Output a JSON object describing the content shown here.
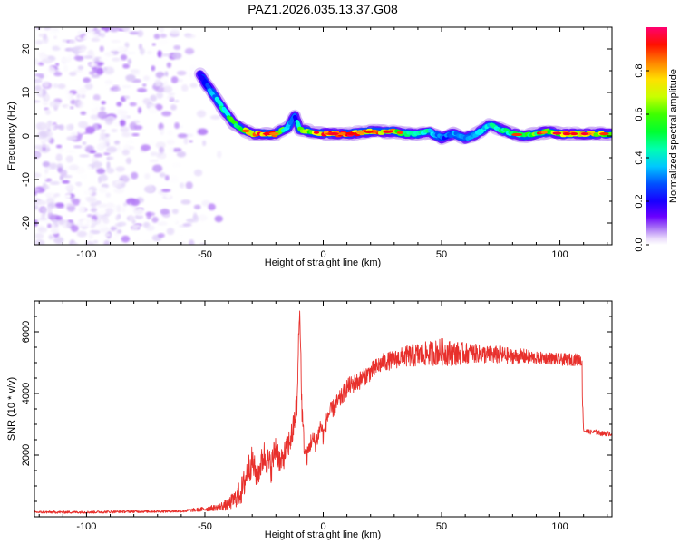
{
  "title": "PAZ1.2026.035.13.37.G08",
  "colors": {
    "snr_line": "#e8302c",
    "axes": "#000000",
    "noise_purple": "#7d1fe6",
    "colormap": [
      "#ffffff",
      "#d9c7f7",
      "#9b4cf5",
      "#5a00ff",
      "#0000ff",
      "#0090ff",
      "#00ffff",
      "#00ff80",
      "#00ff00",
      "#a0ff00",
      "#ffff00",
      "#ffa000",
      "#ff0000",
      "#ff0060"
    ]
  },
  "chart_data": [
    {
      "type": "heatmap",
      "xlabel": "Height of straight line (km)",
      "ylabel": "Frequency (Hz)",
      "xlim": [
        -122,
        122
      ],
      "ylim": [
        -25,
        25
      ],
      "xticks": [
        -100,
        -50,
        0,
        50,
        100
      ],
      "yticks": [
        -20,
        -10,
        0,
        10,
        20
      ],
      "xtick_labels": [
        "-100",
        "-50",
        "0",
        "50",
        "100"
      ],
      "ytick_labels": [
        "-20",
        "-10",
        "0",
        "10",
        "20"
      ],
      "colorbar": {
        "label": "Normalized spectral amplitude",
        "range": [
          0.0,
          1.0
        ],
        "ticks": [
          0.0,
          0.2,
          0.4,
          0.6,
          0.8
        ],
        "tick_labels": [
          "0.0",
          "0.2",
          "0.4",
          "0.6",
          "0.8"
        ]
      },
      "noise_region_x": [
        -122,
        -42
      ],
      "ridge": {
        "x": [
          -52,
          -47,
          -42,
          -38,
          -34,
          -30,
          -25,
          -20,
          -15,
          -12,
          -10,
          -5,
          0,
          10,
          20,
          30,
          35,
          40,
          45,
          50,
          55,
          60,
          65,
          70,
          75,
          80,
          85,
          90,
          95,
          100,
          105,
          110,
          115,
          122
        ],
        "freq": [
          14,
          10,
          6,
          3,
          1.5,
          0.5,
          0.5,
          0.5,
          2,
          4.5,
          1.5,
          1,
          0.5,
          0.5,
          1,
          1,
          0.5,
          0.5,
          1,
          -0.5,
          0.5,
          -0.5,
          0.5,
          2.5,
          1.5,
          0.5,
          0,
          0.5,
          1,
          0.5,
          0.5,
          0.5,
          0.5,
          0.5
        ],
        "amplitude": [
          0.3,
          0.4,
          0.55,
          0.65,
          0.7,
          0.85,
          0.95,
          0.8,
          0.5,
          0.3,
          0.6,
          0.7,
          0.9,
          0.95,
          0.85,
          0.8,
          0.6,
          0.55,
          0.5,
          0.35,
          0.4,
          0.35,
          0.45,
          0.5,
          0.55,
          0.6,
          0.6,
          0.65,
          0.7,
          0.75,
          0.85,
          0.8,
          0.75,
          0.7
        ]
      }
    },
    {
      "type": "line",
      "xlabel": "Height of straight line (km)",
      "ylabel": "SNR (10 * v/v)",
      "xlim": [
        -122,
        122
      ],
      "ylim": [
        0,
        7000
      ],
      "xticks": [
        -100,
        -50,
        0,
        50,
        100
      ],
      "yticks": [
        2000,
        4000,
        6000
      ],
      "xtick_labels": [
        "-100",
        "-50",
        "0",
        "50",
        "100"
      ],
      "ytick_labels": [
        "2000",
        "4000",
        "6000"
      ],
      "series": [
        {
          "x": [
            -122,
            -100,
            -80,
            -60,
            -50,
            -45,
            -40,
            -37,
            -34,
            -32,
            -30,
            -28,
            -25,
            -22,
            -20,
            -18,
            -15,
            -13,
            -11,
            -10,
            -9,
            -8,
            -7,
            -5,
            -3,
            -1,
            0,
            2,
            5,
            8,
            10,
            15,
            20,
            25,
            30,
            35,
            40,
            45,
            50,
            55,
            60,
            65,
            70,
            75,
            80,
            85,
            90,
            95,
            100,
            105,
            109,
            110,
            112,
            115,
            118,
            122
          ],
          "y": [
            150,
            150,
            170,
            180,
            250,
            300,
            400,
            600,
            900,
            1500,
            1800,
            1300,
            2000,
            1600,
            2300,
            1700,
            2300,
            2700,
            3700,
            6500,
            3500,
            2200,
            1900,
            2500,
            2400,
            3000,
            2600,
            3300,
            3600,
            3900,
            4200,
            4400,
            4700,
            5000,
            5100,
            5200,
            5250,
            5300,
            5350,
            5300,
            5300,
            5300,
            5250,
            5250,
            5200,
            5200,
            5150,
            5150,
            5100,
            5100,
            5100,
            2800,
            2750,
            2750,
            2700,
            2700
          ],
          "noise": [
            40,
            40,
            40,
            40,
            80,
            100,
            200,
            300,
            500,
            500,
            500,
            400,
            500,
            500,
            500,
            400,
            450,
            450,
            450,
            500,
            400,
            300,
            300,
            300,
            300,
            300,
            300,
            300,
            300,
            300,
            300,
            300,
            300,
            300,
            300,
            350,
            400,
            400,
            450,
            400,
            350,
            300,
            300,
            300,
            250,
            250,
            200,
            200,
            200,
            200,
            200,
            100,
            80,
            80,
            80,
            80
          ]
        }
      ]
    }
  ]
}
